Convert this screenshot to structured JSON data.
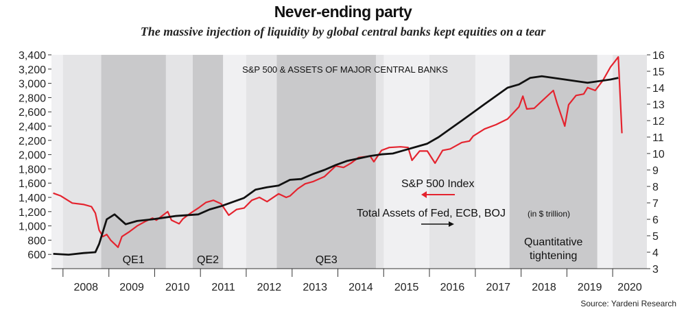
{
  "header": {
    "title": "Never-ending party",
    "subtitle": "The massive injection of liquidity by global central banks kept equities on a tear"
  },
  "footer": {
    "source": "Source: Yardeni Research"
  },
  "colors": {
    "sp500": "#e4232e",
    "assets": "#111111",
    "qe_band": "#c9c9cb",
    "alt_band": "#e4e4e6",
    "plot_bg": "#f0f0f2"
  },
  "chart_data": {
    "type": "line",
    "title": "S&P 500 & ASSETS OF MAJOR CENTRAL BANKS",
    "x_tick_labels": [
      "2008",
      "2009",
      "2010",
      "2011",
      "2012",
      "2013",
      "2014",
      "2015",
      "2016",
      "2017",
      "2018",
      "2019",
      "2020"
    ],
    "xlim": [
      "2007-10-01",
      "2020-09-30"
    ],
    "y_left": {
      "min": 400,
      "max": 3400,
      "ticks": [
        600,
        800,
        1000,
        1200,
        1400,
        1600,
        1800,
        2000,
        2200,
        2400,
        2600,
        2800,
        3000,
        3200,
        3400
      ]
    },
    "y_right": {
      "min": 3,
      "max": 16,
      "ticks": [
        3,
        4,
        5,
        6,
        7,
        8,
        9,
        10,
        11,
        12,
        13,
        14,
        15,
        16
      ]
    },
    "series": [
      {
        "name": "S&P 500 Index",
        "axis": "left",
        "x": [
          "2007-10",
          "2007-12",
          "2008-03",
          "2008-06",
          "2008-08",
          "2008-09",
          "2008-10",
          "2008-11",
          "2008-12",
          "2009-01",
          "2009-03",
          "2009-04",
          "2009-06",
          "2009-08",
          "2009-10",
          "2009-12",
          "2010-01",
          "2010-04",
          "2010-05",
          "2010-07",
          "2010-08",
          "2010-10",
          "2010-12",
          "2011-02",
          "2011-04",
          "2011-06",
          "2011-08",
          "2011-10",
          "2011-12",
          "2012-02",
          "2012-04",
          "2012-06",
          "2012-09",
          "2012-11",
          "2012-12",
          "2013-02",
          "2013-04",
          "2013-06",
          "2013-09",
          "2013-12",
          "2014-02",
          "2014-04",
          "2014-06",
          "2014-09",
          "2014-10",
          "2014-12",
          "2015-02",
          "2015-05",
          "2015-07",
          "2015-08",
          "2015-10",
          "2015-12",
          "2016-02",
          "2016-04",
          "2016-06",
          "2016-09",
          "2016-11",
          "2016-12",
          "2017-03",
          "2017-06",
          "2017-09",
          "2017-12",
          "2018-01",
          "2018-02",
          "2018-04",
          "2018-06",
          "2018-09",
          "2018-10",
          "2018-12",
          "2019-01",
          "2019-03",
          "2019-05",
          "2019-06",
          "2019-08",
          "2019-10",
          "2019-12",
          "2020-01",
          "2020-02",
          "2020-03"
        ],
        "values": [
          1460,
          1420,
          1320,
          1300,
          1270,
          1180,
          940,
          850,
          880,
          800,
          700,
          850,
          920,
          1000,
          1060,
          1110,
          1080,
          1200,
          1080,
          1030,
          1100,
          1180,
          1250,
          1330,
          1360,
          1310,
          1150,
          1230,
          1250,
          1360,
          1400,
          1340,
          1450,
          1400,
          1420,
          1520,
          1590,
          1620,
          1690,
          1840,
          1820,
          1880,
          1960,
          1980,
          1900,
          2060,
          2100,
          2110,
          2100,
          1920,
          2050,
          2050,
          1880,
          2060,
          2080,
          2170,
          2190,
          2260,
          2360,
          2420,
          2500,
          2670,
          2820,
          2640,
          2650,
          2750,
          2900,
          2720,
          2400,
          2700,
          2830,
          2850,
          2940,
          2900,
          3040,
          3230,
          3300,
          3370,
          2300
        ]
      },
      {
        "name": "Total Assets of Fed, ECB, BOJ",
        "unit": "(in $ trillion)",
        "axis": "right",
        "x": [
          "2007-10",
          "2008-02",
          "2008-06",
          "2008-09",
          "2008-10",
          "2008-12",
          "2009-02",
          "2009-05",
          "2009-08",
          "2009-12",
          "2010-06",
          "2010-12",
          "2011-03",
          "2011-06",
          "2011-12",
          "2012-03",
          "2012-06",
          "2012-09",
          "2012-12",
          "2013-03",
          "2013-06",
          "2013-09",
          "2013-12",
          "2014-03",
          "2014-06",
          "2014-09",
          "2014-12",
          "2015-03",
          "2015-06",
          "2015-09",
          "2015-12",
          "2016-03",
          "2016-06",
          "2016-09",
          "2016-12",
          "2017-03",
          "2017-06",
          "2017-09",
          "2017-12",
          "2018-03",
          "2018-06",
          "2018-09",
          "2018-12",
          "2019-03",
          "2019-06",
          "2019-09",
          "2019-12",
          "2020-02"
        ],
        "values": [
          3.9,
          3.85,
          3.95,
          4.0,
          4.5,
          6.0,
          6.3,
          5.7,
          5.9,
          6.0,
          6.2,
          6.3,
          6.6,
          6.8,
          7.3,
          7.8,
          7.95,
          8.05,
          8.4,
          8.45,
          8.75,
          9.0,
          9.3,
          9.55,
          9.7,
          9.85,
          9.95,
          10.0,
          10.2,
          10.4,
          10.6,
          11.0,
          11.5,
          12.0,
          12.5,
          13.0,
          13.5,
          14.0,
          14.2,
          14.6,
          14.7,
          14.6,
          14.5,
          14.4,
          14.3,
          14.4,
          14.5,
          14.6
        ]
      }
    ],
    "bands": [
      {
        "label": "QE1",
        "start": "2008-11-01",
        "end": "2010-03-31"
      },
      {
        "label": "QE2",
        "start": "2010-11-01",
        "end": "2011-06-30"
      },
      {
        "label": "QE3",
        "start": "2012-09-01",
        "end": "2014-10-31"
      },
      {
        "label": "Quantitative",
        "label2": "tightening",
        "start": "2017-10-01",
        "end": "2019-08-31"
      }
    ],
    "annotations": {
      "sp500_label": "S&P 500 Index",
      "assets_label": "Total Assets of Fed, ECB, BOJ",
      "assets_unit": "(in $ trillion)"
    },
    "grid": false,
    "legend": "inline-annotations"
  }
}
